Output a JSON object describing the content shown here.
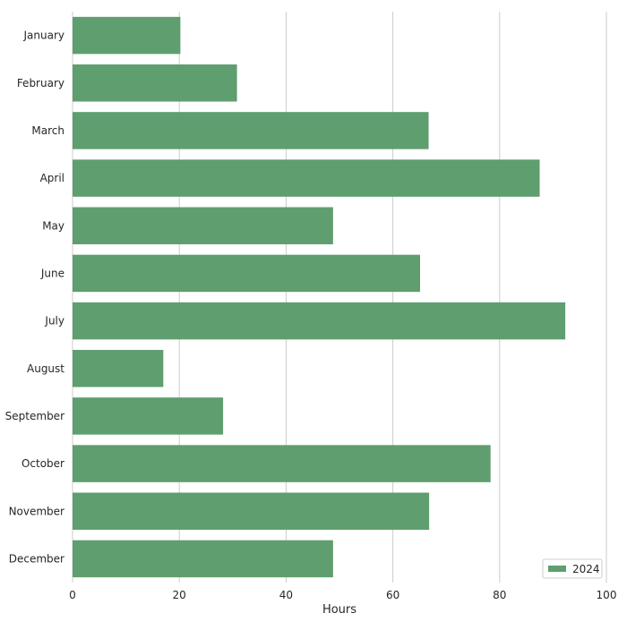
{
  "chart_data": {
    "type": "bar",
    "orientation": "horizontal",
    "categories": [
      "January",
      "February",
      "March",
      "April",
      "May",
      "June",
      "July",
      "August",
      "September",
      "October",
      "November",
      "December"
    ],
    "series": [
      {
        "name": "2024",
        "color": "#5f9e6e",
        "values": [
          20.2,
          30.8,
          66.7,
          87.5,
          48.8,
          65.1,
          92.3,
          17.0,
          28.2,
          78.3,
          66.8,
          48.8
        ]
      }
    ],
    "xlabel": "Hours",
    "ylabel": "",
    "xlim": [
      0,
      100
    ],
    "xticks": [
      "0",
      "20",
      "40",
      "60",
      "80",
      "100"
    ],
    "grid": "vertical",
    "gridline_color": "#cccccc",
    "legend_position": "bottom-right"
  }
}
